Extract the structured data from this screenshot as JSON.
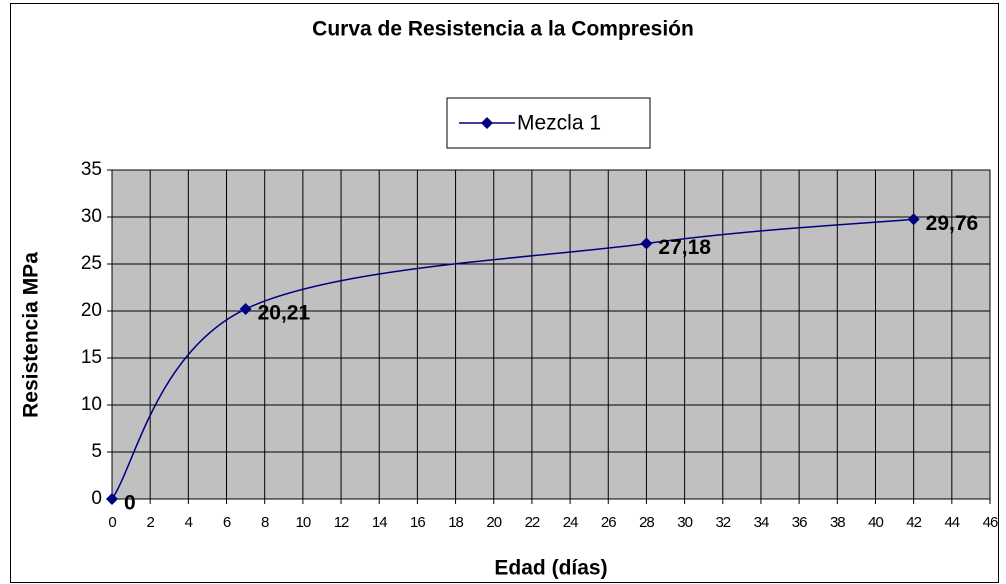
{
  "chart_data": {
    "type": "line",
    "title": "Curva de Resistencia a la Compresión",
    "x_label": "Edad (días)",
    "y_label": "Resistencia MPa",
    "x": [
      0,
      7,
      28,
      42
    ],
    "series": [
      {
        "name": "Mezcla 1",
        "color": "#000080",
        "values": [
          0,
          20.21,
          27.18,
          29.76
        ],
        "value_labels": [
          "0",
          "20,21",
          "27,18",
          "29,76"
        ]
      }
    ],
    "xlim": [
      0,
      46
    ],
    "xticks": [
      0,
      2,
      4,
      6,
      8,
      10,
      12,
      14,
      16,
      18,
      20,
      22,
      24,
      26,
      28,
      30,
      32,
      34,
      36,
      38,
      40,
      42,
      44,
      46
    ],
    "ylim": [
      0,
      35
    ],
    "yticks": [
      0,
      5,
      10,
      15,
      20,
      25,
      30,
      35
    ],
    "grid": true,
    "legend": "top",
    "plot_background": "#c0c0c0"
  }
}
